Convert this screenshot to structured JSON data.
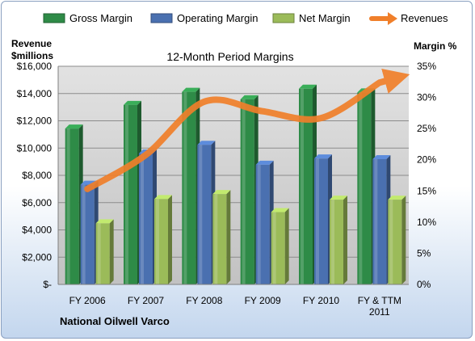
{
  "chart_data": {
    "type": "bar",
    "title": "12-Month Period Margins",
    "company": "National Oilwell Varco",
    "left_axis_label": [
      "Revenue",
      "$millions"
    ],
    "right_axis_label": "Margin %",
    "left_ticks": [
      "$-",
      "$2,000",
      "$4,000",
      "$6,000",
      "$8,000",
      "$10,000",
      "$12,000",
      "$14,000",
      "$16,000"
    ],
    "right_ticks": [
      "0%",
      "5%",
      "10%",
      "15%",
      "20%",
      "25%",
      "30%",
      "35%"
    ],
    "left_ylim": [
      0,
      16000
    ],
    "right_ylim": [
      0,
      35
    ],
    "categories": [
      [
        "FY 2006"
      ],
      [
        "FY 2007"
      ],
      [
        "FY 2008"
      ],
      [
        "FY 2009"
      ],
      [
        "FY 2010"
      ],
      [
        "FY & TTM",
        "2011"
      ]
    ],
    "legend_position": "top",
    "grid": true,
    "series": [
      {
        "name": "Gross Margin",
        "type": "bar",
        "axis": "right",
        "color": "#2e8b47",
        "values": [
          25,
          28.8,
          30.9,
          29.7,
          31.4,
          30.8
        ]
      },
      {
        "name": "Operating Margin",
        "type": "bar",
        "axis": "right",
        "color": "#4a70b0",
        "values": [
          16,
          21,
          22.4,
          19.2,
          20.2,
          20.1
        ]
      },
      {
        "name": "Net Margin",
        "type": "bar",
        "axis": "right",
        "color": "#9bbb59",
        "values": [
          9.8,
          13.7,
          14.5,
          11.6,
          13.6,
          13.6
        ]
      },
      {
        "name": "Revenues",
        "type": "line",
        "axis": "left",
        "color": "#f07f2a",
        "values": [
          7000,
          9500,
          13400,
          12700,
          12200,
          14800
        ]
      }
    ]
  }
}
